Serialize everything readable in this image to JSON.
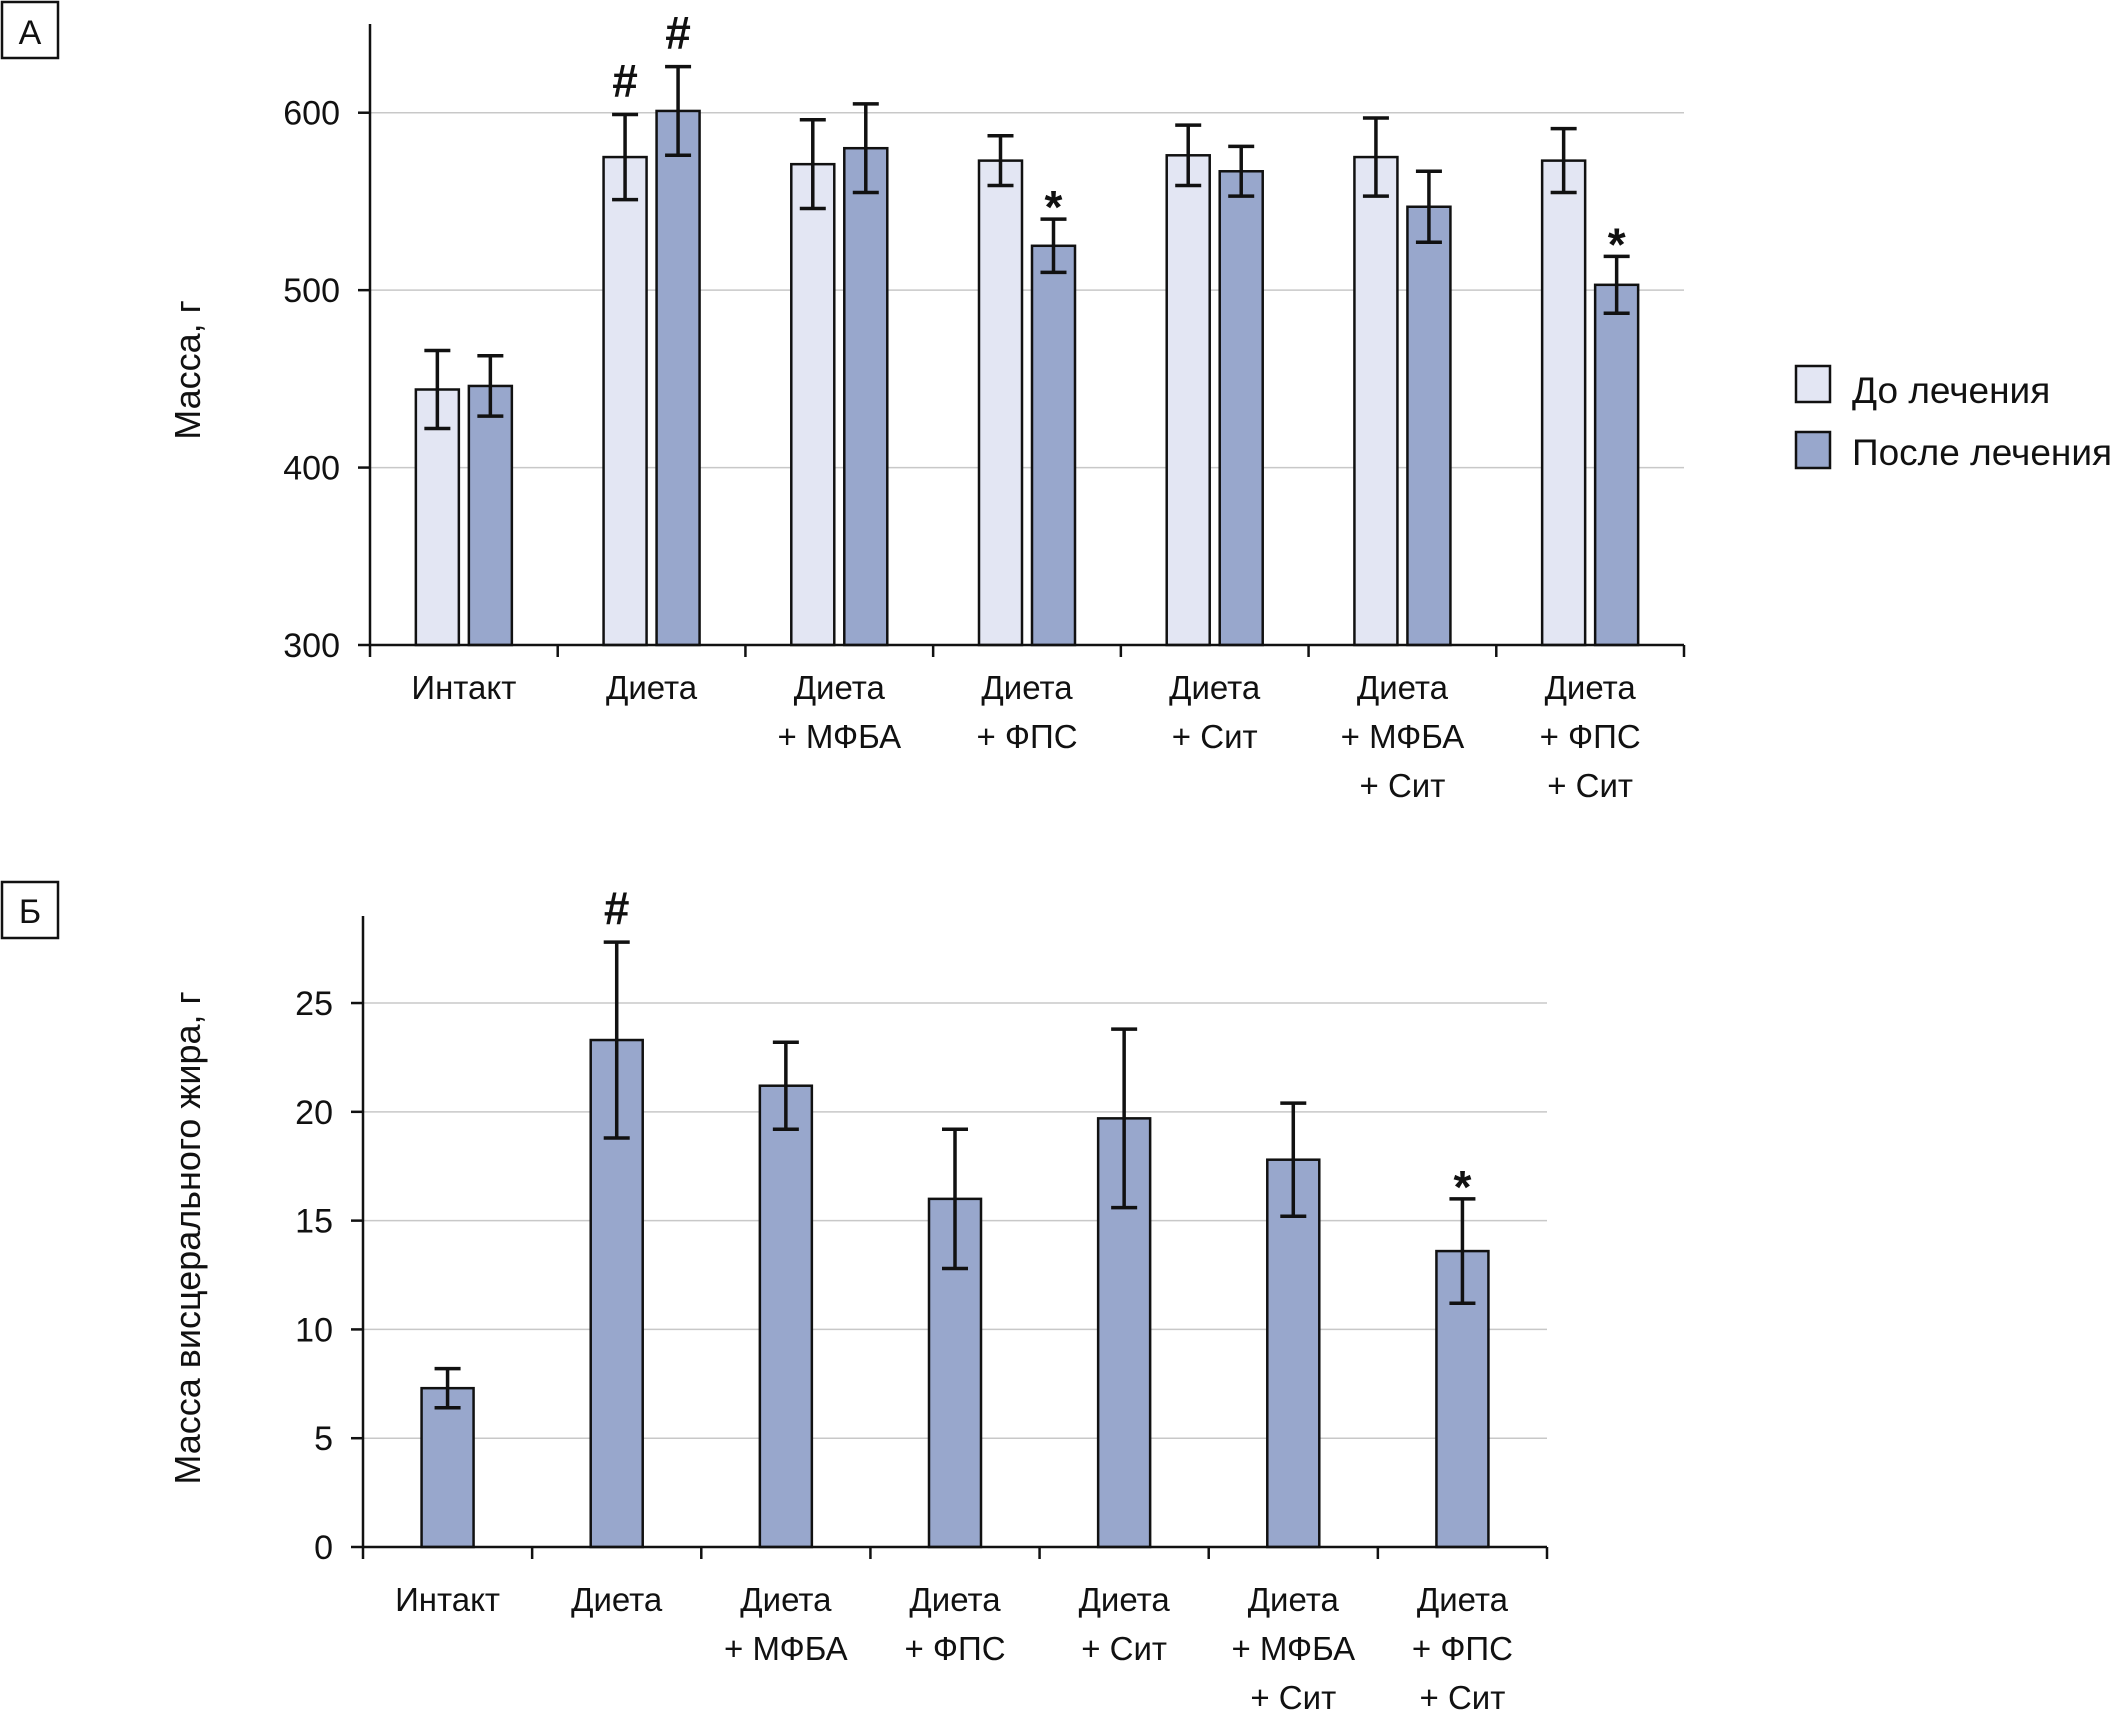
{
  "colors": {
    "before": "#e3e6f3",
    "after": "#98a7cc"
  },
  "chart_data": [
    {
      "type": "bar",
      "panel_label": "А",
      "ylabel": "Масса, г",
      "ylim": [
        300,
        650
      ],
      "yticks": [
        300,
        400,
        500,
        600
      ],
      "grid": true,
      "legend": "right",
      "categories": [
        [
          "Интакт"
        ],
        [
          "Диета"
        ],
        [
          "Диета",
          "+ МФБА"
        ],
        [
          "Диета",
          "+ ФПС"
        ],
        [
          "Диета",
          "+ Сит"
        ],
        [
          "Диета",
          "+ МФБА",
          "+ Сит"
        ],
        [
          "Диета",
          "+ ФПС",
          "+ Сит"
        ]
      ],
      "series": [
        {
          "name": "До лечения",
          "color_key": "before",
          "values": [
            444,
            575,
            571,
            573,
            576,
            575,
            573
          ],
          "errors": [
            22,
            24,
            25,
            14,
            17,
            22,
            18
          ],
          "marks": [
            "",
            "#",
            "",
            "",
            "",
            "",
            ""
          ]
        },
        {
          "name": "После лечения",
          "color_key": "after",
          "values": [
            446,
            601,
            580,
            525,
            567,
            547,
            503
          ],
          "errors": [
            17,
            25,
            25,
            15,
            14,
            20,
            16
          ],
          "marks": [
            "",
            "#",
            "",
            "*",
            "",
            "",
            "*"
          ]
        }
      ]
    },
    {
      "type": "bar",
      "panel_label": "Б",
      "ylabel": "Масса висцерального жира, г",
      "ylim": [
        0,
        29
      ],
      "yticks": [
        0,
        5,
        10,
        15,
        20,
        25
      ],
      "grid": true,
      "categories": [
        [
          "Интакт"
        ],
        [
          "Диета"
        ],
        [
          "Диета",
          "+ МФБА"
        ],
        [
          "Диета",
          "+ ФПС"
        ],
        [
          "Диета",
          "+ Сит"
        ],
        [
          "Диета",
          "+ МФБА",
          "+ Сит"
        ],
        [
          "Диета",
          "+ ФПС",
          "+ Сит"
        ]
      ],
      "series": [
        {
          "name": "Масса висцерального жира",
          "color_key": "after",
          "values": [
            7.3,
            23.3,
            21.2,
            16.0,
            19.7,
            17.8,
            13.6
          ],
          "errors": [
            0.9,
            4.5,
            2.0,
            3.2,
            4.1,
            2.6,
            2.4
          ],
          "marks": [
            "",
            "#",
            "",
            "",
            "",
            "",
            "*"
          ]
        }
      ]
    }
  ]
}
